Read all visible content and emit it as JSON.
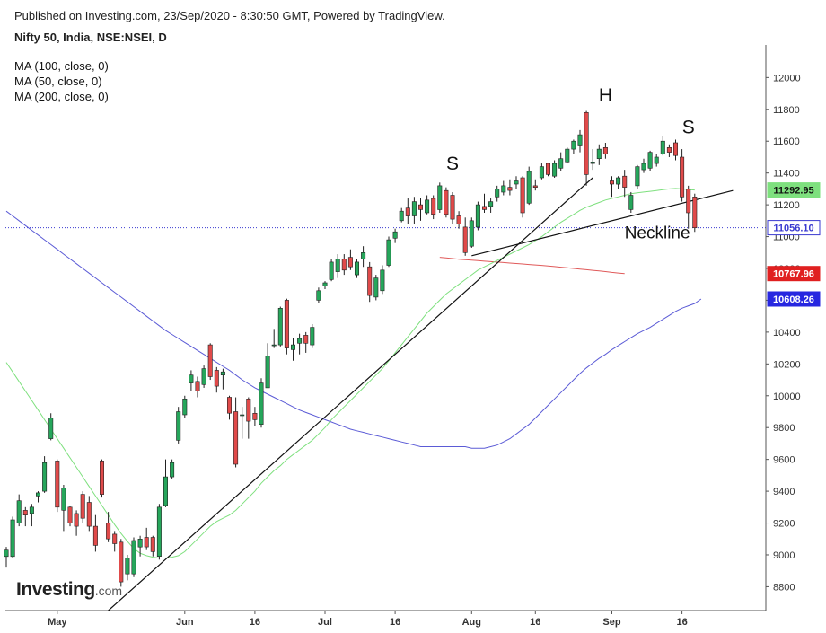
{
  "header": {
    "published": "Published on Investing.com, 23/Sep/2020 - 8:30:50 GMT, Powered by TradingView.",
    "instrument": "Nifty 50, India, NSE:NSEI, D"
  },
  "legend": [
    {
      "label": "MA (100, close, 0)",
      "color": "#5b5bd6"
    },
    {
      "label": "MA (50, close, 0)",
      "color": "#7ee07e"
    },
    {
      "label": "MA (200, close, 0)",
      "color": "#e05a5a"
    }
  ],
  "logo": {
    "brand": "Investing",
    "suffix": ".com"
  },
  "chart_data": {
    "type": "candlestick",
    "y_axis": {
      "min": 8650,
      "max": 12160,
      "ticks": [
        8800,
        9000,
        9200,
        9400,
        9600,
        9800,
        10000,
        10200,
        10400,
        10600,
        10800,
        11000,
        11200,
        11400,
        11600,
        11800,
        12000
      ]
    },
    "x_axis": {
      "labels": [
        {
          "label": "May",
          "bar": 8
        },
        {
          "label": "Jun",
          "bar": 28
        },
        {
          "label": "16",
          "bar": 39
        },
        {
          "label": "Jul",
          "bar": 50
        },
        {
          "label": "16",
          "bar": 61
        },
        {
          "label": "Aug",
          "bar": 73
        },
        {
          "label": "16",
          "bar": 83
        },
        {
          "label": "Sep",
          "bar": 95
        },
        {
          "label": "16",
          "bar": 106
        }
      ]
    },
    "up_color": "#26a65b",
    "down_color": "#e04a4a",
    "candles": [
      {
        "o": 8990,
        "h": 9050,
        "l": 8920,
        "c": 9030
      },
      {
        "o": 8990,
        "h": 9240,
        "l": 8980,
        "c": 9220
      },
      {
        "o": 9200,
        "h": 9380,
        "l": 9180,
        "c": 9340
      },
      {
        "o": 9280,
        "h": 9300,
        "l": 9180,
        "c": 9250
      },
      {
        "o": 9260,
        "h": 9320,
        "l": 9180,
        "c": 9300
      },
      {
        "o": 9370,
        "h": 9400,
        "l": 9330,
        "c": 9390
      },
      {
        "o": 9400,
        "h": 9620,
        "l": 9390,
        "c": 9580
      },
      {
        "o": 9730,
        "h": 9890,
        "l": 9720,
        "c": 9860
      },
      {
        "o": 9590,
        "h": 9600,
        "l": 9270,
        "c": 9300
      },
      {
        "o": 9280,
        "h": 9440,
        "l": 9150,
        "c": 9420
      },
      {
        "o": 9300,
        "h": 9310,
        "l": 9180,
        "c": 9200
      },
      {
        "o": 9260,
        "h": 9280,
        "l": 9120,
        "c": 9180
      },
      {
        "o": 9380,
        "h": 9400,
        "l": 9200,
        "c": 9230
      },
      {
        "o": 9330,
        "h": 9370,
        "l": 9150,
        "c": 9180
      },
      {
        "o": 9180,
        "h": 9250,
        "l": 9020,
        "c": 9060
      },
      {
        "o": 9590,
        "h": 9600,
        "l": 9360,
        "c": 9380
      },
      {
        "o": 9200,
        "h": 9270,
        "l": 9080,
        "c": 9100
      },
      {
        "o": 9130,
        "h": 9150,
        "l": 9020,
        "c": 9070
      },
      {
        "o": 9080,
        "h": 9100,
        "l": 8800,
        "c": 8830
      },
      {
        "o": 8880,
        "h": 9000,
        "l": 8840,
        "c": 8980
      },
      {
        "o": 8880,
        "h": 9110,
        "l": 8860,
        "c": 9090
      },
      {
        "o": 9050,
        "h": 9120,
        "l": 8990,
        "c": 9100
      },
      {
        "o": 9110,
        "h": 9170,
        "l": 9030,
        "c": 9050
      },
      {
        "o": 9110,
        "h": 9120,
        "l": 8990,
        "c": 9020
      },
      {
        "o": 8990,
        "h": 9320,
        "l": 8970,
        "c": 9300
      },
      {
        "o": 9310,
        "h": 9600,
        "l": 9300,
        "c": 9490
      },
      {
        "o": 9490,
        "h": 9600,
        "l": 9480,
        "c": 9580
      },
      {
        "o": 9720,
        "h": 9930,
        "l": 9700,
        "c": 9900
      },
      {
        "o": 9880,
        "h": 10000,
        "l": 9860,
        "c": 9980
      },
      {
        "o": 10080,
        "h": 10160,
        "l": 10030,
        "c": 10130
      },
      {
        "o": 10090,
        "h": 10120,
        "l": 9990,
        "c": 10030
      },
      {
        "o": 10070,
        "h": 10190,
        "l": 10050,
        "c": 10170
      },
      {
        "o": 10320,
        "h": 10330,
        "l": 10100,
        "c": 10120
      },
      {
        "o": 10160,
        "h": 10180,
        "l": 10020,
        "c": 10060
      },
      {
        "o": 10130,
        "h": 10170,
        "l": 10040,
        "c": 10150
      },
      {
        "o": 9990,
        "h": 10000,
        "l": 9850,
        "c": 9890
      },
      {
        "o": 9900,
        "h": 9990,
        "l": 9550,
        "c": 9570
      },
      {
        "o": 9880,
        "h": 9930,
        "l": 9730,
        "c": 9880
      },
      {
        "o": 9980,
        "h": 9990,
        "l": 9730,
        "c": 9840
      },
      {
        "o": 9890,
        "h": 9930,
        "l": 9810,
        "c": 9850
      },
      {
        "o": 9820,
        "h": 10110,
        "l": 9800,
        "c": 10080
      },
      {
        "o": 10050,
        "h": 10330,
        "l": 10050,
        "c": 10250
      },
      {
        "o": 10320,
        "h": 10420,
        "l": 10300,
        "c": 10320
      },
      {
        "o": 10320,
        "h": 10560,
        "l": 10310,
        "c": 10550
      },
      {
        "o": 10600,
        "h": 10610,
        "l": 10260,
        "c": 10300
      },
      {
        "o": 10290,
        "h": 10360,
        "l": 10220,
        "c": 10320
      },
      {
        "o": 10330,
        "h": 10390,
        "l": 10260,
        "c": 10360
      },
      {
        "o": 10380,
        "h": 10400,
        "l": 10270,
        "c": 10330
      },
      {
        "o": 10320,
        "h": 10450,
        "l": 10300,
        "c": 10430
      },
      {
        "o": 10600,
        "h": 10680,
        "l": 10580,
        "c": 10660
      },
      {
        "o": 10690,
        "h": 10720,
        "l": 10670,
        "c": 10710
      },
      {
        "o": 10730,
        "h": 10860,
        "l": 10720,
        "c": 10840
      },
      {
        "o": 10780,
        "h": 10890,
        "l": 10740,
        "c": 10860
      },
      {
        "o": 10860,
        "h": 10890,
        "l": 10760,
        "c": 10790
      },
      {
        "o": 10870,
        "h": 10920,
        "l": 10790,
        "c": 10810
      },
      {
        "o": 10760,
        "h": 10860,
        "l": 10740,
        "c": 10840
      },
      {
        "o": 10860,
        "h": 10940,
        "l": 10810,
        "c": 10900
      },
      {
        "o": 10810,
        "h": 10840,
        "l": 10590,
        "c": 10630
      },
      {
        "o": 10620,
        "h": 10760,
        "l": 10600,
        "c": 10740
      },
      {
        "o": 10660,
        "h": 10820,
        "l": 10640,
        "c": 10790
      },
      {
        "o": 10820,
        "h": 11000,
        "l": 10810,
        "c": 10980
      },
      {
        "o": 10990,
        "h": 11050,
        "l": 10960,
        "c": 11030
      },
      {
        "o": 11100,
        "h": 11180,
        "l": 11090,
        "c": 11160
      },
      {
        "o": 11180,
        "h": 11240,
        "l": 11080,
        "c": 11130
      },
      {
        "o": 11130,
        "h": 11250,
        "l": 11080,
        "c": 11220
      },
      {
        "o": 11200,
        "h": 11240,
        "l": 11100,
        "c": 11170
      },
      {
        "o": 11150,
        "h": 11260,
        "l": 11140,
        "c": 11230
      },
      {
        "o": 11240,
        "h": 11260,
        "l": 11110,
        "c": 11140
      },
      {
        "o": 11170,
        "h": 11340,
        "l": 11150,
        "c": 11320
      },
      {
        "o": 11290,
        "h": 11310,
        "l": 11120,
        "c": 11140
      },
      {
        "o": 11260,
        "h": 11280,
        "l": 11080,
        "c": 11110
      },
      {
        "o": 11130,
        "h": 11160,
        "l": 11050,
        "c": 11080
      },
      {
        "o": 11060,
        "h": 11120,
        "l": 10880,
        "c": 10900
      },
      {
        "o": 10940,
        "h": 11120,
        "l": 10930,
        "c": 11100
      },
      {
        "o": 11060,
        "h": 11220,
        "l": 11040,
        "c": 11200
      },
      {
        "o": 11190,
        "h": 11270,
        "l": 11150,
        "c": 11170
      },
      {
        "o": 11190,
        "h": 11240,
        "l": 11150,
        "c": 11220
      },
      {
        "o": 11250,
        "h": 11320,
        "l": 11220,
        "c": 11300
      },
      {
        "o": 11280,
        "h": 11350,
        "l": 11260,
        "c": 11320
      },
      {
        "o": 11310,
        "h": 11360,
        "l": 11260,
        "c": 11290
      },
      {
        "o": 11330,
        "h": 11380,
        "l": 11300,
        "c": 11350
      },
      {
        "o": 11370,
        "h": 11380,
        "l": 11120,
        "c": 11150
      },
      {
        "o": 11210,
        "h": 11440,
        "l": 11200,
        "c": 11410
      },
      {
        "o": 11320,
        "h": 11360,
        "l": 11290,
        "c": 11310
      },
      {
        "o": 11370,
        "h": 11460,
        "l": 11360,
        "c": 11440
      },
      {
        "o": 11460,
        "h": 11460,
        "l": 11380,
        "c": 11390
      },
      {
        "o": 11380,
        "h": 11480,
        "l": 11370,
        "c": 11460
      },
      {
        "o": 11430,
        "h": 11530,
        "l": 11410,
        "c": 11490
      },
      {
        "o": 11470,
        "h": 11560,
        "l": 11460,
        "c": 11550
      },
      {
        "o": 11550,
        "h": 11610,
        "l": 11520,
        "c": 11600
      },
      {
        "o": 11570,
        "h": 11670,
        "l": 11530,
        "c": 11640
      },
      {
        "o": 11780,
        "h": 11790,
        "l": 11320,
        "c": 11390
      },
      {
        "o": 11460,
        "h": 11550,
        "l": 11420,
        "c": 11470
      },
      {
        "o": 11490,
        "h": 11580,
        "l": 11450,
        "c": 11550
      },
      {
        "o": 11560,
        "h": 11590,
        "l": 11490,
        "c": 11520
      },
      {
        "o": 11350,
        "h": 11380,
        "l": 11250,
        "c": 11330
      },
      {
        "o": 11330,
        "h": 11380,
        "l": 11300,
        "c": 11370
      },
      {
        "o": 11380,
        "h": 11420,
        "l": 11250,
        "c": 11310
      },
      {
        "o": 11170,
        "h": 11280,
        "l": 11150,
        "c": 11260
      },
      {
        "o": 11320,
        "h": 11450,
        "l": 11300,
        "c": 11440
      },
      {
        "o": 11420,
        "h": 11490,
        "l": 11400,
        "c": 11460
      },
      {
        "o": 11430,
        "h": 11540,
        "l": 11410,
        "c": 11530
      },
      {
        "o": 11460,
        "h": 11520,
        "l": 11440,
        "c": 11500
      },
      {
        "o": 11520,
        "h": 11630,
        "l": 11510,
        "c": 11600
      },
      {
        "o": 11560,
        "h": 11580,
        "l": 11500,
        "c": 11530
      },
      {
        "o": 11590,
        "h": 11610,
        "l": 11480,
        "c": 11510
      },
      {
        "o": 11500,
        "h": 11550,
        "l": 11220,
        "c": 11250
      },
      {
        "o": 11300,
        "h": 11320,
        "l": 11050,
        "c": 11150
      },
      {
        "o": 11250,
        "h": 11270,
        "l": 11030,
        "c": 11056
      }
    ],
    "series": [
      {
        "name": "MA (200, close, 0)",
        "color": "#e05a5a",
        "start_bar": 68,
        "values": [
          10870,
          10866,
          10862,
          10858,
          10855,
          10852,
          10849,
          10846,
          10843,
          10840,
          10837,
          10834,
          10831,
          10828,
          10825,
          10822,
          10819,
          10816,
          10812,
          10808,
          10804,
          10800,
          10796,
          10792,
          10788,
          10784,
          10780,
          10775,
          10771,
          10768
        ]
      },
      {
        "name": "MA (50, close, 0)",
        "color": "#7ee07e",
        "values": [
          10210,
          10150,
          10090,
          10030,
          9970,
          9910,
          9850,
          9790,
          9730,
          9670,
          9610,
          9550,
          9490,
          9430,
          9370,
          9310,
          9250,
          9190,
          9135,
          9085,
          9040,
          9010,
          8995,
          8985,
          8980,
          8980,
          8985,
          8995,
          9020,
          9060,
          9100,
          9140,
          9180,
          9210,
          9230,
          9250,
          9280,
          9320,
          9360,
          9400,
          9450,
          9490,
          9530,
          9560,
          9600,
          9630,
          9660,
          9690,
          9720,
          9760,
          9800,
          9850,
          9890,
          9930,
          9970,
          10010,
          10050,
          10090,
          10130,
          10170,
          10220,
          10270,
          10320,
          10370,
          10420,
          10470,
          10520,
          10560,
          10600,
          10640,
          10670,
          10700,
          10730,
          10760,
          10790,
          10810,
          10830,
          10850,
          10870,
          10890,
          10910,
          10930,
          10950,
          10975,
          11000,
          11030,
          11060,
          11090,
          11115,
          11140,
          11165,
          11185,
          11200,
          11215,
          11230,
          11240,
          11250,
          11260,
          11270,
          11275,
          11280,
          11285,
          11290,
          11295,
          11300,
          11303,
          11300,
          11296,
          11293
        ]
      },
      {
        "name": "MA (100, close, 0)",
        "color": "#5b5bd6",
        "values": [
          11160,
          11130,
          11100,
          11070,
          11040,
          11010,
          10980,
          10950,
          10920,
          10890,
          10860,
          10830,
          10800,
          10770,
          10740,
          10710,
          10680,
          10650,
          10620,
          10590,
          10560,
          10530,
          10500,
          10470,
          10440,
          10410,
          10385,
          10360,
          10335,
          10310,
          10285,
          10260,
          10235,
          10210,
          10185,
          10160,
          10130,
          10100,
          10075,
          10050,
          10030,
          10010,
          9990,
          9970,
          9950,
          9930,
          9910,
          9895,
          9880,
          9865,
          9850,
          9835,
          9820,
          9805,
          9790,
          9780,
          9770,
          9760,
          9750,
          9740,
          9730,
          9720,
          9710,
          9700,
          9690,
          9680,
          9680,
          9680,
          9680,
          9680,
          9680,
          9680,
          9680,
          9670,
          9670,
          9670,
          9680,
          9690,
          9710,
          9730,
          9760,
          9790,
          9820,
          9860,
          9900,
          9940,
          9980,
          10020,
          10060,
          10100,
          10140,
          10175,
          10205,
          10235,
          10260,
          10290,
          10315,
          10340,
          10365,
          10390,
          10410,
          10430,
          10455,
          10480,
          10505,
          10530,
          10550,
          10565,
          10580,
          10608
        ]
      }
    ],
    "price_labels": [
      {
        "value": 11292.95,
        "text": "11292.95",
        "bg": "#7ee07e",
        "fg": "#111111"
      },
      {
        "value": 11056.1,
        "text": "11056.10",
        "bg": "#ffffff",
        "fg": "#3a3ad0"
      },
      {
        "value": 10767.96,
        "text": "10767.96",
        "bg": "#e02020",
        "fg": "#ffffff"
      },
      {
        "value": 10608.26,
        "text": "10608.26",
        "bg": "#2727e0",
        "fg": "#ffffff"
      }
    ],
    "current_price": 11056.1,
    "trendlines": [
      {
        "name": "uptrend-line",
        "from": {
          "bar": 16,
          "value": 8650
        },
        "to": {
          "bar": 92,
          "value": 11370
        }
      },
      {
        "name": "neckline",
        "from": {
          "bar": 73,
          "value": 10880
        },
        "to": {
          "bar": 114,
          "value": 11290
        }
      }
    ],
    "annotations": [
      {
        "name": "left-shoulder-label",
        "text": "S",
        "bar": 70,
        "value": 11420
      },
      {
        "name": "head-label",
        "text": "H",
        "bar": 94,
        "value": 11850
      },
      {
        "name": "right-shoulder-label",
        "text": "S",
        "bar": 107,
        "value": 11650
      },
      {
        "name": "neckline-label",
        "text": "Neckline",
        "bar": 97,
        "value": 10990
      }
    ]
  }
}
